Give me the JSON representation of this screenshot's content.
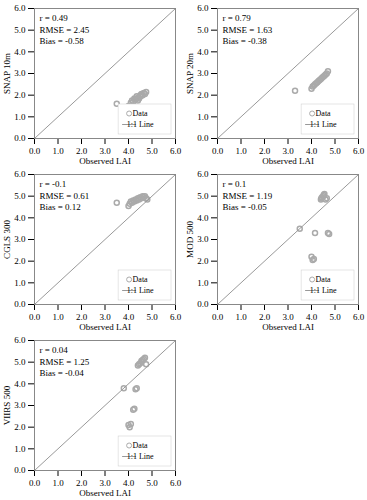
{
  "chart_data": [
    {
      "type": "scatter",
      "x_label": "Observed LAI",
      "y_label": "SNAP 10m",
      "annotations": [
        "r = 0.49\nRMSE = 2.45\nBias = -0.58"
      ],
      "series": [
        {
          "name": "Data",
          "type": "scatter",
          "color": "#aaaaaa",
          "marker": "circle",
          "x": [
            3.5,
            4.0,
            4.1,
            4.15,
            4.2,
            4.25,
            4.3,
            4.35,
            4.4,
            4.42,
            4.45,
            4.5,
            4.52,
            4.55,
            4.6,
            4.65,
            4.7,
            4.75
          ],
          "values": [
            1.6,
            1.5,
            1.65,
            1.75,
            1.7,
            1.85,
            1.8,
            1.95,
            1.75,
            1.9,
            1.85,
            2.0,
            1.95,
            2.05,
            2.0,
            2.1,
            2.05,
            2.15
          ]
        },
        {
          "name": "1:1 Line",
          "type": "line",
          "color": "#999999",
          "line_style": "solid",
          "x": [
            0,
            6
          ],
          "values": [
            0,
            6
          ]
        }
      ],
      "xlim": [
        0,
        6
      ],
      "ylim": [
        0,
        6
      ],
      "xticks": [
        0,
        1,
        2,
        3,
        4,
        5,
        6
      ],
      "yticks": [
        0,
        1,
        2,
        3,
        4,
        5,
        6
      ],
      "legend": "lower right"
    },
    {
      "type": "scatter",
      "x_label": "Observed LAI",
      "y_label": "SNAP 20m",
      "annotations": [
        "r = 0.79\nRMSE = 1.63\nBias = -0.38"
      ],
      "series": [
        {
          "name": "Data",
          "type": "scatter",
          "color": "#aaaaaa",
          "marker": "circle",
          "x": [
            3.3,
            4.0,
            4.05,
            4.1,
            4.15,
            4.2,
            4.25,
            4.3,
            4.35,
            4.4,
            4.45,
            4.5,
            4.55,
            4.6,
            4.65,
            4.7
          ],
          "values": [
            2.2,
            2.3,
            2.4,
            2.45,
            2.5,
            2.55,
            2.6,
            2.65,
            2.7,
            2.75,
            2.8,
            2.85,
            2.9,
            2.95,
            3.0,
            3.1
          ]
        },
        {
          "name": "1:1 Line",
          "type": "line",
          "color": "#999999",
          "line_style": "solid",
          "x": [
            0,
            6
          ],
          "values": [
            0,
            6
          ]
        }
      ],
      "xlim": [
        0,
        6
      ],
      "ylim": [
        0,
        6
      ],
      "xticks": [
        0,
        1,
        2,
        3,
        4,
        5,
        6
      ],
      "yticks": [
        0,
        1,
        2,
        3,
        4,
        5,
        6
      ],
      "legend": "lower right"
    },
    {
      "type": "scatter",
      "x_label": "Observed LAI",
      "y_label": "CGLS 300",
      "annotations": [
        "r = -0.1\nRMSE = 0.61\nBias = 0.12"
      ],
      "series": [
        {
          "name": "Data",
          "type": "scatter",
          "color": "#aaaaaa",
          "marker": "circle",
          "x": [
            3.5,
            4.0,
            4.05,
            4.1,
            4.15,
            4.2,
            4.25,
            4.3,
            4.35,
            4.4,
            4.45,
            4.5,
            4.55,
            4.6,
            4.65,
            4.7,
            4.75,
            4.8
          ],
          "values": [
            4.7,
            4.55,
            4.65,
            4.75,
            4.7,
            4.8,
            4.75,
            4.85,
            4.8,
            4.9,
            4.85,
            4.95,
            4.9,
            5.0,
            4.95,
            5.0,
            4.9,
            4.85
          ]
        },
        {
          "name": "1:1 Line",
          "type": "line",
          "color": "#999999",
          "line_style": "solid",
          "x": [
            0,
            6
          ],
          "values": [
            0,
            6
          ]
        }
      ],
      "xlim": [
        0,
        6
      ],
      "ylim": [
        0,
        6
      ],
      "xticks": [
        0,
        1,
        2,
        3,
        4,
        5,
        6
      ],
      "yticks": [
        0,
        1,
        2,
        3,
        4,
        5,
        6
      ],
      "legend": "lower right"
    },
    {
      "type": "scatter",
      "x_label": "Observed LAI",
      "y_label": "MOD 500",
      "annotations": [
        "r = 0.1\nRMSE = 1.19\nBias = -0.05"
      ],
      "series": [
        {
          "name": "Data",
          "type": "scatter",
          "color": "#aaaaaa",
          "marker": "circle",
          "x": [
            3.5,
            4.0,
            4.05,
            4.1,
            4.15,
            4.4,
            4.42,
            4.45,
            4.5,
            4.52,
            4.55,
            4.6,
            4.65,
            4.7,
            4.75
          ],
          "values": [
            3.5,
            2.2,
            2.05,
            2.1,
            3.3,
            4.85,
            4.9,
            4.95,
            5.0,
            5.05,
            5.1,
            4.85,
            4.9,
            3.3,
            3.25
          ]
        },
        {
          "name": "1:1 Line",
          "type": "line",
          "color": "#999999",
          "line_style": "solid",
          "x": [
            0,
            6
          ],
          "values": [
            0,
            6
          ]
        }
      ],
      "xlim": [
        0,
        6
      ],
      "ylim": [
        0,
        6
      ],
      "xticks": [
        0,
        1,
        2,
        3,
        4,
        5,
        6
      ],
      "yticks": [
        0,
        1,
        2,
        3,
        4,
        5,
        6
      ],
      "legend": "lower right"
    },
    {
      "type": "scatter",
      "x_label": "Observed LAI",
      "y_label": "VIIRS 500",
      "annotations": [
        "r = 0.04\nRMSE = 1.25\nBias = -0.04"
      ],
      "series": [
        {
          "name": "Data",
          "type": "scatter",
          "color": "#aaaaaa",
          "marker": "circle",
          "x": [
            3.8,
            4.0,
            4.05,
            4.1,
            4.2,
            4.25,
            4.3,
            4.35,
            4.4,
            4.45,
            4.5,
            4.55,
            4.6,
            4.65,
            4.7,
            4.75
          ],
          "values": [
            3.8,
            2.1,
            2.0,
            2.15,
            2.8,
            2.85,
            3.75,
            3.8,
            4.85,
            4.9,
            4.95,
            5.05,
            5.1,
            5.15,
            5.2,
            4.9
          ]
        },
        {
          "name": "1:1 Line",
          "type": "line",
          "color": "#999999",
          "line_style": "solid",
          "x": [
            0,
            6
          ],
          "values": [
            0,
            6
          ]
        }
      ],
      "xlim": [
        0,
        6
      ],
      "ylim": [
        0,
        6
      ],
      "xticks": [
        0,
        1,
        2,
        3,
        4,
        5,
        6
      ],
      "yticks": [
        0,
        1,
        2,
        3,
        4,
        5,
        6
      ],
      "legend": "lower right"
    }
  ]
}
